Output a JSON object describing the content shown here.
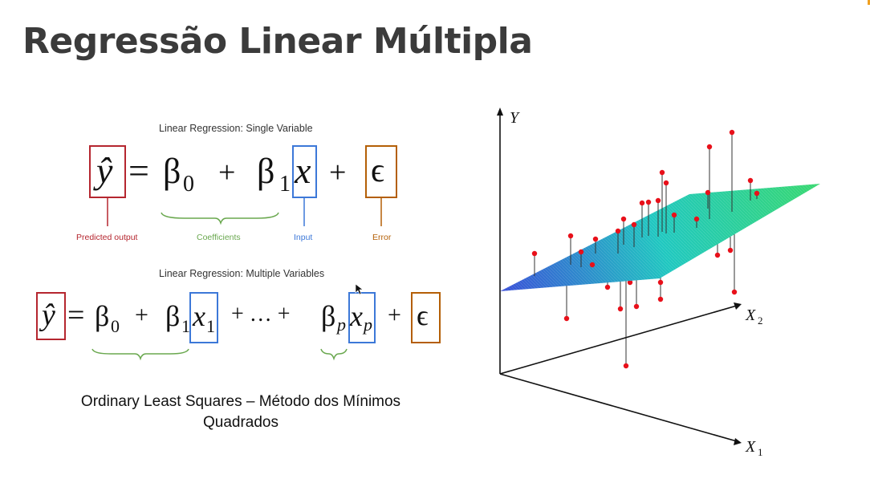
{
  "title": "Regressão Linear Múltipla",
  "single": {
    "heading": "Linear Regression: Single Variable",
    "y_hat": "ŷ",
    "equals": "=",
    "beta0": "β",
    "sub0": "0",
    "plus": "+",
    "beta1": "β",
    "sub1": "1",
    "x": "x",
    "epsilon": "ϵ",
    "label_predicted": "Predicted output",
    "label_coefficients": "Coefficients",
    "label_input": "Input",
    "label_error": "Error",
    "colors": {
      "predicted": "#b5262f",
      "coefficients": "#6aa84f",
      "input": "#3c78d8",
      "error": "#b45f06"
    }
  },
  "multiple": {
    "heading": "Linear Regression: Multiple Variables",
    "y_hat": "ŷ",
    "equals": "=",
    "beta0": "β",
    "sub0": "0",
    "plus": "+",
    "beta1": "β",
    "sub1": "1",
    "x1": "x",
    "x1_sub": "1",
    "ellipsis": "+ … +",
    "betap": "β",
    "subp": "p",
    "xp": "x",
    "xp_sub": "p",
    "epsilon": "ϵ"
  },
  "caption": "Ordinary Least Squares – Método dos Mínimos Quadrados",
  "plot": {
    "axis_y": "Y",
    "axis_x1": "X",
    "axis_x1_sub": "1",
    "axis_x2": "X",
    "axis_x2_sub": "2",
    "point_color": "#e8101a",
    "plane_colors": [
      "#3a4fd8",
      "#20c8c0",
      "#38d870"
    ]
  }
}
